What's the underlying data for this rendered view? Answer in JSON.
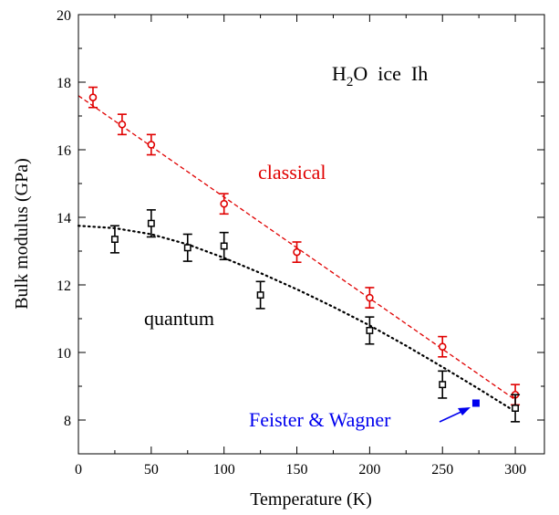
{
  "chart_data": {
    "type": "scatter",
    "xlabel": "Temperature (K)",
    "ylabel": "Bulk modulus (GPa)",
    "xlim": [
      0,
      320
    ],
    "ylim": [
      7,
      20
    ],
    "x_ticks": [
      0,
      50,
      100,
      150,
      200,
      250,
      300
    ],
    "y_ticks": [
      8,
      10,
      12,
      14,
      16,
      18,
      20
    ],
    "grid": false,
    "legend": "none",
    "series": [
      {
        "name": "classical",
        "color": "#e00000",
        "marker": "circle-open",
        "points": [
          {
            "x": 10,
            "y": 17.55,
            "err": 0.3
          },
          {
            "x": 30,
            "y": 16.75,
            "err": 0.3
          },
          {
            "x": 50,
            "y": 16.15,
            "err": 0.3
          },
          {
            "x": 100,
            "y": 14.4,
            "err": 0.3
          },
          {
            "x": 150,
            "y": 12.97,
            "err": 0.3
          },
          {
            "x": 200,
            "y": 11.62,
            "err": 0.3
          },
          {
            "x": 250,
            "y": 10.17,
            "err": 0.3
          },
          {
            "x": 300,
            "y": 8.75,
            "err": 0.3
          }
        ],
        "fit": {
          "style": "dashed",
          "x": [
            0,
            300
          ],
          "y": [
            17.6,
            8.6
          ]
        }
      },
      {
        "name": "quantum",
        "color": "#000000",
        "marker": "square-open",
        "points": [
          {
            "x": 25,
            "y": 13.35,
            "err": 0.4
          },
          {
            "x": 50,
            "y": 13.82,
            "err": 0.4
          },
          {
            "x": 75,
            "y": 13.1,
            "err": 0.4
          },
          {
            "x": 100,
            "y": 13.15,
            "err": 0.4
          },
          {
            "x": 125,
            "y": 11.7,
            "err": 0.4
          },
          {
            "x": 200,
            "y": 10.65,
            "err": 0.4
          },
          {
            "x": 250,
            "y": 9.05,
            "err": 0.4
          },
          {
            "x": 300,
            "y": 8.35,
            "err": 0.4
          }
        ],
        "fit": {
          "style": "dotted",
          "x": [
            0,
            25,
            50,
            75,
            100,
            125,
            150,
            175,
            200,
            225,
            250,
            275,
            300
          ],
          "y": [
            13.75,
            13.68,
            13.5,
            13.2,
            12.8,
            12.35,
            11.87,
            11.35,
            10.8,
            10.2,
            9.57,
            8.92,
            8.25
          ]
        }
      },
      {
        "name": "Feister & Wagner",
        "color": "#0000ee",
        "marker": "square-filled",
        "points": [
          {
            "x": 273,
            "y": 8.5
          }
        ]
      }
    ],
    "annotations": {
      "title_main": "H",
      "title_sub": "2",
      "title_rest": "O  ice  Ih",
      "classical": "classical",
      "quantum": "quantum",
      "reference": "Feister & Wagner"
    }
  }
}
